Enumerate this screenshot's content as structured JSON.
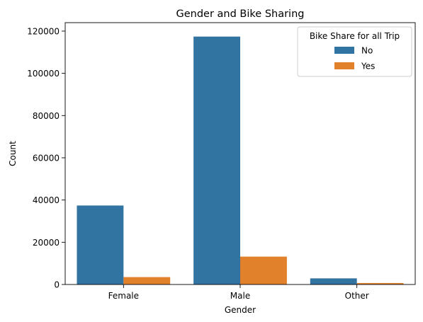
{
  "chart_data": {
    "type": "bar",
    "title": "Gender and Bike Sharing",
    "xlabel": "Gender",
    "ylabel": "Count",
    "categories": [
      "Female",
      "Male",
      "Other"
    ],
    "ylim": [
      0,
      124000
    ],
    "yticks": [
      0,
      20000,
      40000,
      60000,
      80000,
      100000,
      120000
    ],
    "grid": false,
    "legend": {
      "title": "Bike Share for all Trip",
      "position": "top-right"
    },
    "series": [
      {
        "name": "No",
        "color": "#3274a1",
        "values": [
          37400,
          117400,
          2900
        ]
      },
      {
        "name": "Yes",
        "color": "#e1812c",
        "values": [
          3500,
          13200,
          700
        ]
      }
    ]
  }
}
